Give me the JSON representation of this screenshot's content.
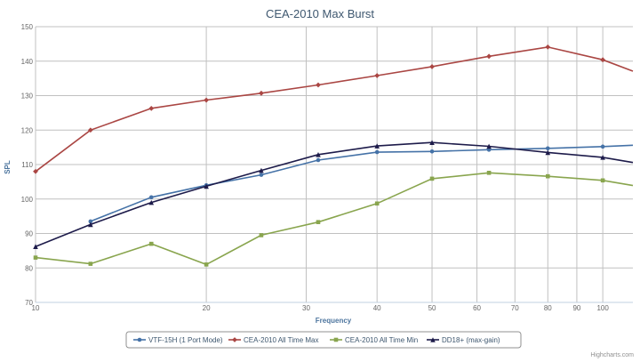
{
  "chart_data": {
    "type": "line",
    "title": "CEA-2010 Max Burst",
    "xlabel": "Frequency",
    "ylabel": "SPL",
    "x_scale": "log",
    "xlim": [
      10,
      113
    ],
    "ylim": [
      70,
      150
    ],
    "x_ticks": [
      10,
      20,
      30,
      40,
      50,
      60,
      70,
      80,
      90,
      100
    ],
    "y_ticks": [
      70,
      80,
      90,
      100,
      110,
      120,
      130,
      140,
      150
    ],
    "grid": true,
    "legend_position": "bottom-center",
    "credits": "Highcharts.com",
    "series": [
      {
        "name": "VTF-15H (1 Port Mode)",
        "color": "#4572a7",
        "marker": "circle",
        "points": [
          [
            12.5,
            93.5
          ],
          [
            16,
            100.5
          ],
          [
            20,
            104
          ],
          [
            25,
            107
          ],
          [
            31.5,
            111.3
          ],
          [
            40,
            113.6
          ],
          [
            50,
            113.8
          ],
          [
            63,
            114.3
          ],
          [
            80,
            114.7
          ],
          [
            100,
            115.2
          ],
          [
            113,
            115.6
          ]
        ]
      },
      {
        "name": "CEA-2010 All Time Max",
        "color": "#aa4643",
        "marker": "diamond",
        "points": [
          [
            10,
            108
          ],
          [
            12.5,
            120
          ],
          [
            16,
            126.3
          ],
          [
            20,
            128.7
          ],
          [
            25,
            130.7
          ],
          [
            31.5,
            133.1
          ],
          [
            40,
            135.8
          ],
          [
            50,
            138.4
          ],
          [
            63,
            141.4
          ],
          [
            80,
            144.1
          ],
          [
            100,
            140.4
          ],
          [
            113,
            137.1
          ]
        ]
      },
      {
        "name": "CEA-2010 All Time Min",
        "color": "#89a54e",
        "marker": "square",
        "points": [
          [
            10,
            83
          ],
          [
            12.5,
            81.2
          ],
          [
            16,
            87
          ],
          [
            20,
            81
          ],
          [
            25,
            89.5
          ],
          [
            31.5,
            93.3
          ],
          [
            40,
            98.7
          ],
          [
            50,
            105.9
          ],
          [
            63,
            107.6
          ],
          [
            80,
            106.6
          ],
          [
            100,
            105.4
          ],
          [
            113,
            103.9
          ]
        ]
      },
      {
        "name": "DD18+ (max-gain)",
        "color": "#1d1b4a",
        "marker": "triangle",
        "points": [
          [
            10,
            86.2
          ],
          [
            12.5,
            92.6
          ],
          [
            16,
            99
          ],
          [
            20,
            103.7
          ],
          [
            25,
            108.3
          ],
          [
            31.5,
            112.9
          ],
          [
            40,
            115.4
          ],
          [
            50,
            116.4
          ],
          [
            63,
            115.3
          ],
          [
            80,
            113.5
          ],
          [
            100,
            112.1
          ],
          [
            113,
            110.6
          ]
        ]
      }
    ]
  }
}
